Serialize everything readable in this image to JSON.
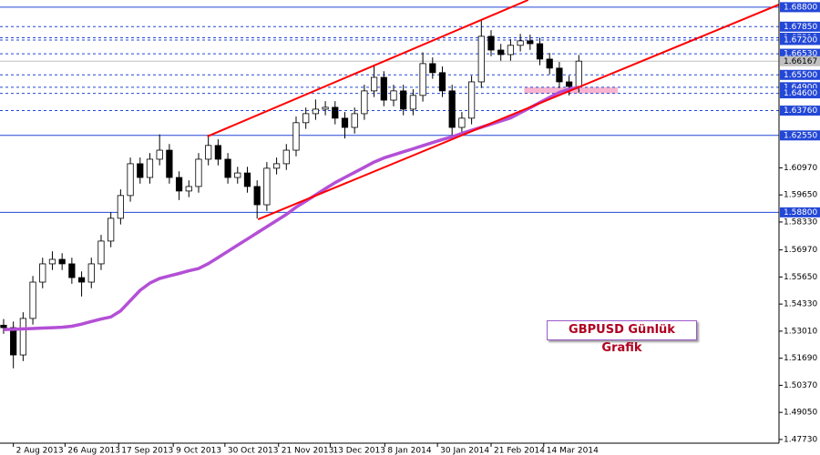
{
  "chart_data": {
    "type": "candlestick",
    "title": "GBPUSD Günlük Grafik",
    "open": [
      1.533,
      1.5318,
      1.5185,
      1.5363,
      1.554,
      1.5629,
      1.5651,
      1.5629,
      1.5562,
      1.554,
      1.5629,
      1.574,
      1.5851,
      1.5962,
      1.6117,
      1.605,
      1.6139,
      1.6183,
      1.605,
      1.5984,
      1.6006,
      1.6139,
      1.6206,
      1.6139,
      1.605,
      1.6072,
      1.6006,
      1.5917,
      1.6095,
      1.6117,
      1.6183,
      1.6317,
      1.6361,
      1.6383,
      1.6392,
      1.6339,
      1.6294,
      1.6361,
      1.6472,
      1.6538,
      1.6427,
      1.6472,
      1.6383,
      1.645,
      1.6605,
      1.6561,
      1.6472,
      1.6294,
      1.6339,
      1.6516,
      1.6738,
      1.6671,
      1.6649,
      1.6694,
      1.6716,
      1.6702,
      1.6627,
      1.6583,
      1.6516,
      1.6494
    ],
    "high": [
      1.536,
      1.5348,
      1.5393,
      1.557,
      1.5659,
      1.569,
      1.5681,
      1.5659,
      1.5592,
      1.5659,
      1.577,
      1.5881,
      1.5992,
      1.6147,
      1.6147,
      1.6169,
      1.626,
      1.6213,
      1.608,
      1.6036,
      1.6169,
      1.6259,
      1.6236,
      1.6169,
      1.6102,
      1.6102,
      1.6036,
      1.6125,
      1.6147,
      1.6213,
      1.6347,
      1.6391,
      1.643,
      1.6422,
      1.6422,
      1.6369,
      1.6391,
      1.6502,
      1.66,
      1.6568,
      1.6502,
      1.6502,
      1.648,
      1.666,
      1.6635,
      1.6591,
      1.6502,
      1.6369,
      1.6546,
      1.682,
      1.6768,
      1.6701,
      1.6724,
      1.675,
      1.6746,
      1.6732,
      1.6657,
      1.6613,
      1.6546,
      1.6647
    ],
    "low": [
      1.5288,
      1.512,
      1.5155,
      1.5333,
      1.551,
      1.5599,
      1.5599,
      1.5532,
      1.547,
      1.551,
      1.5599,
      1.571,
      1.5821,
      1.5932,
      1.602,
      1.602,
      1.6109,
      1.602,
      1.594,
      1.5954,
      1.5976,
      1.6109,
      1.6109,
      1.602,
      1.602,
      1.5976,
      1.585,
      1.5887,
      1.6065,
      1.6087,
      1.6153,
      1.6287,
      1.6331,
      1.6353,
      1.6309,
      1.624,
      1.6264,
      1.6331,
      1.6442,
      1.6397,
      1.6397,
      1.6353,
      1.6353,
      1.642,
      1.6531,
      1.6442,
      1.625,
      1.6264,
      1.6309,
      1.6486,
      1.6641,
      1.6619,
      1.6619,
      1.6664,
      1.6672,
      1.6597,
      1.6553,
      1.6486,
      1.645,
      1.6464
    ],
    "close": [
      1.5318,
      1.5185,
      1.5363,
      1.554,
      1.5629,
      1.5651,
      1.5629,
      1.5562,
      1.554,
      1.5629,
      1.574,
      1.5851,
      1.5962,
      1.6117,
      1.605,
      1.6139,
      1.6183,
      1.605,
      1.5984,
      1.6006,
      1.6139,
      1.6206,
      1.6139,
      1.605,
      1.6072,
      1.6006,
      1.5917,
      1.6095,
      1.6117,
      1.6183,
      1.6317,
      1.6361,
      1.6383,
      1.6392,
      1.6339,
      1.6294,
      1.6361,
      1.6472,
      1.6538,
      1.6427,
      1.6472,
      1.6383,
      1.645,
      1.6605,
      1.6561,
      1.6472,
      1.6294,
      1.6339,
      1.6516,
      1.6738,
      1.6671,
      1.6649,
      1.6694,
      1.6716,
      1.6702,
      1.6627,
      1.6583,
      1.6516,
      1.6494,
      1.6617
    ],
    "ma": {
      "color": "#b44fd6",
      "values": [
        1.5309,
        1.531,
        1.5312,
        1.5314,
        1.5316,
        1.5318,
        1.532,
        1.5325,
        1.5335,
        1.5348,
        1.536,
        1.537,
        1.54,
        1.545,
        1.55,
        1.5535,
        1.5558,
        1.557,
        1.5582,
        1.5595,
        1.5606,
        1.563,
        1.566,
        1.569,
        1.572,
        1.575,
        1.578,
        1.581,
        1.584,
        1.587,
        1.5905,
        1.5935,
        1.5965,
        1.5995,
        1.6025,
        1.605,
        1.6075,
        1.61,
        1.6125,
        1.6145,
        1.616,
        1.6175,
        1.619,
        1.6205,
        1.622,
        1.6235,
        1.6248,
        1.6265,
        1.628,
        1.6295,
        1.631,
        1.6325,
        1.634,
        1.6365,
        1.639,
        1.6415,
        1.644,
        1.6465,
        1.648,
        1.649
      ]
    },
    "xlim": [
      -0.37,
      79.53
    ],
    "xticks": [
      {
        "value": 1.0,
        "label": "2 Aug 2013"
      },
      {
        "value": 6.3,
        "label": "26 Aug 2013"
      },
      {
        "value": 11.8,
        "label": "17 Sep 2013"
      },
      {
        "value": 17.4,
        "label": "9 Oct 2013"
      },
      {
        "value": 22.7,
        "label": "30 Oct 2013"
      },
      {
        "value": 28.2,
        "label": "21 Nov 2013"
      },
      {
        "value": 33.5,
        "label": "13 Dec 2013"
      },
      {
        "value": 39.1,
        "label": "8 Jan 2014"
      },
      {
        "value": 44.5,
        "label": "30 Jan 2014"
      },
      {
        "value": 50.0,
        "label": "21 Feb 2014"
      },
      {
        "value": 55.4,
        "label": "14 Mar 2014"
      }
    ],
    "ylim": [
      1.4755,
      1.6915
    ],
    "yticks": [
      {
        "value": 1.4773,
        "label": "1.47730"
      },
      {
        "value": 1.4905,
        "label": "1.49050"
      },
      {
        "value": 1.5037,
        "label": "1.50370"
      },
      {
        "value": 1.5169,
        "label": "1.51690"
      },
      {
        "value": 1.5301,
        "label": "1.53010"
      },
      {
        "value": 1.5433,
        "label": "1.54330"
      },
      {
        "value": 1.5565,
        "label": "1.55650"
      },
      {
        "value": 1.5697,
        "label": "1.56970"
      },
      {
        "value": 1.5833,
        "label": "1.58330"
      },
      {
        "value": 1.5965,
        "label": "1.59650"
      },
      {
        "value": 1.6097,
        "label": "1.60970"
      }
    ],
    "levels": [
      {
        "value": 1.688,
        "label": "1.68800",
        "style": "solid"
      },
      {
        "value": 1.6785,
        "label": "1.67850",
        "style": "dashed"
      },
      {
        "value": 1.6731,
        "label": "1.67310",
        "style": "dashed"
      },
      {
        "value": 1.672,
        "label": "1.67200",
        "style": "dashed"
      },
      {
        "value": 1.6653,
        "label": "1.66530",
        "style": "dashed"
      },
      {
        "value": 1.655,
        "label": "1.65500",
        "style": "dashed"
      },
      {
        "value": 1.649,
        "label": "1.64900",
        "style": "dashed"
      },
      {
        "value": 1.646,
        "label": "1.64600",
        "style": "dashed"
      },
      {
        "value": 1.6376,
        "label": "1.63760",
        "style": "dashed"
      },
      {
        "value": 1.6255,
        "label": "1.62550",
        "style": "solid"
      },
      {
        "value": 1.588,
        "label": "1.58800",
        "style": "solid"
      }
    ],
    "current": {
      "value": 1.66167,
      "label": "1.66167",
      "color": "#c0c0c0"
    },
    "trendlines": [
      {
        "color": "#ff0000",
        "points": [
          [
            20.9,
            1.625
          ],
          [
            53.8,
            1.6915
          ]
        ]
      },
      {
        "color": "#ff0000",
        "points": [
          [
            26.1,
            1.5846
          ],
          [
            80.0,
            1.6902
          ]
        ]
      }
    ],
    "zone": {
      "x": [
        53.4,
        63.0
      ],
      "y": [
        1.646,
        1.649
      ],
      "color": "#f7a8c8"
    },
    "colors": {
      "level": "#2347d6",
      "bull": "#ffffff",
      "bear": "#000000",
      "wick": "#000000"
    }
  }
}
